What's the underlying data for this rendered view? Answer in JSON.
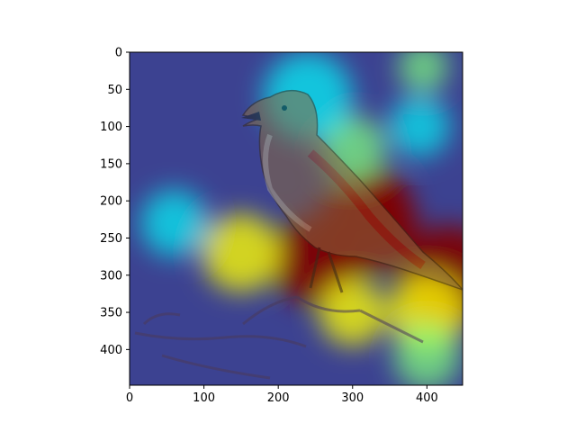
{
  "chart_data": {
    "type": "heatmap",
    "title": "",
    "xlabel": "",
    "ylabel": "",
    "xlim": [
      0,
      448
    ],
    "ylim": [
      448,
      0
    ],
    "x_ticks": [
      0,
      100,
      200,
      300,
      400
    ],
    "y_ticks": [
      0,
      50,
      100,
      150,
      200,
      250,
      300,
      350,
      400
    ],
    "colormap": "jet",
    "grid": false,
    "legend": "none",
    "background_image": "bird-on-branch-photo",
    "colormap_stops": [
      {
        "t": 0.0,
        "color": "#00007f"
      },
      {
        "t": 0.15,
        "color": "#0000ff"
      },
      {
        "t": 0.35,
        "color": "#00ffff"
      },
      {
        "t": 0.5,
        "color": "#7fff7f"
      },
      {
        "t": 0.65,
        "color": "#ffff00"
      },
      {
        "t": 0.85,
        "color": "#ff0000"
      },
      {
        "t": 1.0,
        "color": "#7f0000"
      }
    ],
    "hotspots": [
      {
        "x": 320,
        "y": 230,
        "r": 90,
        "value": 1.0
      },
      {
        "x": 250,
        "y": 280,
        "r": 80,
        "value": 0.95
      },
      {
        "x": 430,
        "y": 300,
        "r": 90,
        "value": 0.95
      },
      {
        "x": 330,
        "y": 200,
        "r": 60,
        "value": 0.9
      },
      {
        "x": 150,
        "y": 270,
        "r": 70,
        "value": 0.55
      },
      {
        "x": 300,
        "y": 130,
        "r": 60,
        "value": 0.45
      },
      {
        "x": 240,
        "y": 60,
        "r": 80,
        "value": 0.35
      },
      {
        "x": 395,
        "y": 20,
        "r": 45,
        "value": 0.4
      },
      {
        "x": 400,
        "y": 350,
        "r": 70,
        "value": 0.6
      },
      {
        "x": 300,
        "y": 350,
        "r": 60,
        "value": 0.55
      },
      {
        "x": 400,
        "y": 410,
        "r": 60,
        "value": 0.4
      },
      {
        "x": 60,
        "y": 230,
        "r": 60,
        "value": 0.3
      },
      {
        "x": 390,
        "y": 100,
        "r": 55,
        "value": 0.25
      }
    ]
  }
}
